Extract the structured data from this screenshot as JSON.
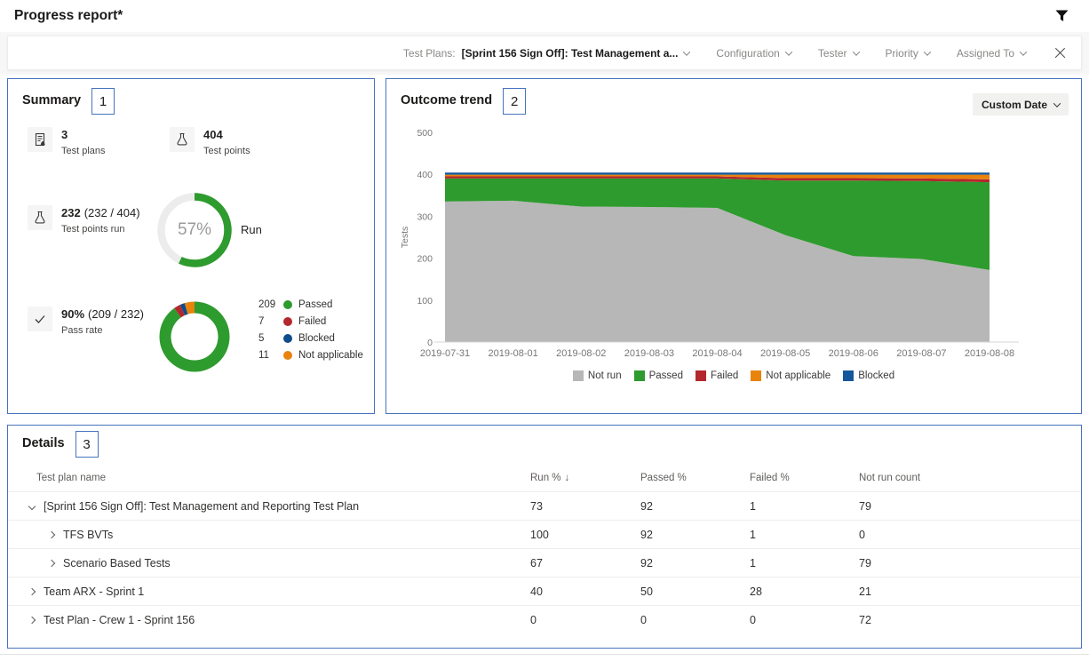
{
  "header": {
    "title": "Progress report*"
  },
  "filter_bar": {
    "test_plans_label": "Test Plans:",
    "test_plans_value": "[Sprint 156 Sign Off]: Test Management a...",
    "dropdowns": [
      "Configuration",
      "Tester",
      "Priority",
      "Assigned To"
    ]
  },
  "summary": {
    "title": "Summary",
    "badge": "1",
    "stats": [
      {
        "icon": "test-plan-icon",
        "value": "3",
        "suffix": "",
        "label": "Test plans"
      },
      {
        "icon": "flask-icon",
        "value": "404",
        "suffix": "",
        "label": "Test points"
      },
      {
        "icon": "flask-icon",
        "value": "232",
        "suffix": "(232 / 404)",
        "label": "Test points run"
      },
      {
        "icon": "check-icon",
        "value": "90%",
        "suffix": "(209 / 232)",
        "label": "Pass rate"
      }
    ]
  },
  "trend": {
    "title": "Outcome trend",
    "badge": "2",
    "range_button": "Custom Date"
  },
  "details": {
    "title": "Details",
    "badge": "3",
    "columns": [
      "Test plan name",
      "Run %",
      "Passed %",
      "Failed %",
      "Not run count"
    ],
    "sort_icon": "↓",
    "rows": [
      {
        "name": "[Sprint 156 Sign Off]: Test Management and Reporting Test Plan",
        "run": "73",
        "passed": "92",
        "failed": "1",
        "notrun": "79"
      },
      {
        "name": "TFS BVTs",
        "run": "100",
        "passed": "92",
        "failed": "1",
        "notrun": "0"
      },
      {
        "name": "Scenario Based Tests",
        "run": "67",
        "passed": "92",
        "failed": "1",
        "notrun": "79"
      },
      {
        "name": "Team ARX - Sprint 1",
        "run": "40",
        "passed": "50",
        "failed": "28",
        "notrun": "21"
      },
      {
        "name": "Test Plan - Crew 1 - Sprint 156",
        "run": "0",
        "passed": "0",
        "failed": "0",
        "notrun": "72"
      }
    ]
  },
  "chart_data": [
    {
      "type": "donut",
      "id": "run_gauge",
      "title": "Run",
      "center_label": "57%",
      "percent": 57,
      "colors": {
        "progress": "#2E9B2E",
        "track": "#ececec"
      }
    },
    {
      "type": "pie",
      "id": "outcome_donut",
      "total": 232,
      "slices": [
        {
          "label": "Passed",
          "value": 209,
          "color": "#2E9B2E"
        },
        {
          "label": "Failed",
          "value": 7,
          "color": "#B3282D"
        },
        {
          "label": "Blocked",
          "value": 5,
          "color": "#0F4C8C"
        },
        {
          "label": "Not applicable",
          "value": 11,
          "color": "#E8830C"
        }
      ],
      "legend_position": "right"
    },
    {
      "type": "area",
      "id": "outcome_trend",
      "title": "Outcome trend",
      "stacked": true,
      "x": [
        "2019-07-31",
        "2019-08-01",
        "2019-08-02",
        "2019-08-03",
        "2019-08-04",
        "2019-08-05",
        "2019-08-06",
        "2019-08-07",
        "2019-08-08"
      ],
      "series": [
        {
          "name": "Not run",
          "color": "#B7B7B7",
          "values": [
            335,
            337,
            323,
            322,
            320,
            255,
            205,
            198,
            172
          ]
        },
        {
          "name": "Passed",
          "color": "#2E9B2E",
          "values": [
            55,
            53,
            67,
            68,
            70,
            130,
            180,
            186,
            209
          ]
        },
        {
          "name": "Failed",
          "color": "#B3282D",
          "values": [
            5,
            5,
            5,
            5,
            5,
            6,
            6,
            6,
            7
          ]
        },
        {
          "name": "Not applicable",
          "color": "#E8830C",
          "values": [
            4,
            4,
            4,
            4,
            4,
            8,
            8,
            9,
            11
          ]
        },
        {
          "name": "Blocked",
          "color": "#15579B",
          "values": [
            5,
            5,
            5,
            5,
            5,
            5,
            5,
            5,
            5
          ]
        }
      ],
      "ylabel": "Tests",
      "ylim": [
        0,
        500
      ],
      "yticks": [
        0,
        100,
        200,
        300,
        400,
        500
      ],
      "legend_position": "bottom",
      "grid": false
    }
  ]
}
